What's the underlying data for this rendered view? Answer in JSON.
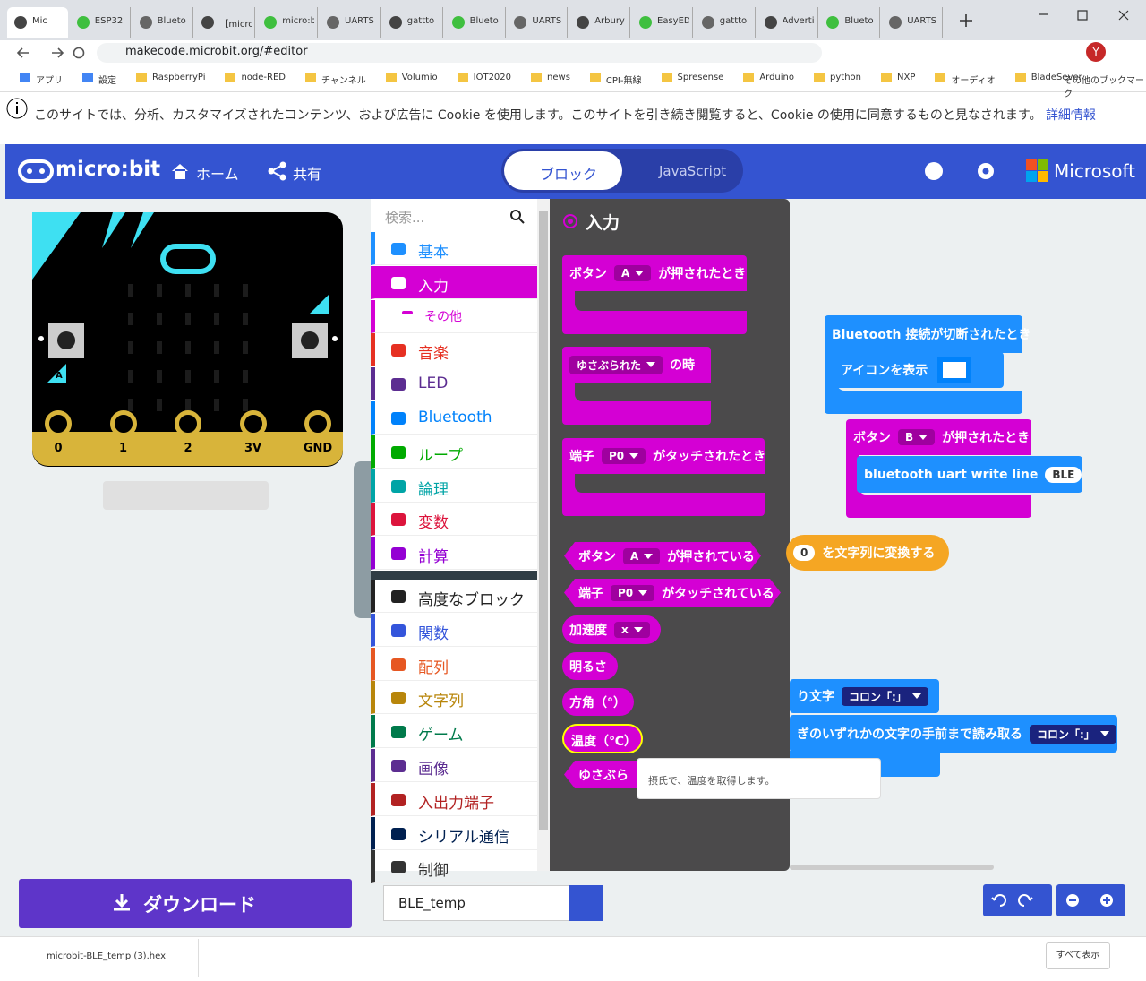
{
  "browser": {
    "tabs": [
      "Mic",
      "ESP32",
      "Blueto",
      "【micro",
      "micro:b",
      "UARTS",
      "gattto",
      "Blueto",
      "UARTS",
      "Arbury",
      "EasyED",
      "gattto",
      "Advertis",
      "Blueto",
      "UARTS"
    ],
    "address": "makecode.microbit.org/#editor",
    "profile": "Y",
    "bookmarks": [
      "アプリ",
      "設定",
      "RaspberryPi",
      "node-RED",
      "チャンネル",
      "Volumio",
      "IOT2020",
      "news",
      "CPI-無線",
      "Spresense",
      "Arduino",
      "python",
      "NXP",
      "オーディオ",
      "BladeSever"
    ],
    "other_bookmarks": "その他のブックマーク"
  },
  "cookie_banner": {
    "text": "このサイトでは、分析、カスタマイズされたコンテンツ、および広告に Cookie を使用します。このサイトを引き続き閲覧すると、Cookie の使用に同意するものと見なされます。",
    "link": "詳細情報"
  },
  "header": {
    "logo": "micro:bit",
    "home": "ホーム",
    "share": "共有",
    "blocks_tab": "ブロック",
    "javascript_tab": "JavaScript",
    "brand": "Microsoft"
  },
  "simulator": {
    "pins": [
      "0",
      "1",
      "2",
      "3V",
      "GND"
    ],
    "button_a": "A",
    "button_b": "B"
  },
  "toolbox": {
    "search_placeholder": "検索...",
    "categories": [
      "基本",
      "入力",
      "その他",
      "音楽",
      "LED",
      "Bluetooth",
      "ループ",
      "論理",
      "変数",
      "計算",
      "高度なブロック",
      "関数",
      "配列",
      "文字列",
      "ゲーム",
      "画像",
      "入出力端子",
      "シリアル通信",
      "制御"
    ]
  },
  "flyout": {
    "title": "入力",
    "blocks": [
      [
        "ボタン",
        "A",
        "が押されたとき"
      ],
      [
        "ゆさぶられた",
        "の時"
      ],
      [
        "端子",
        "P0",
        "がタッチされたとき"
      ],
      [
        "ボタン",
        "A",
        "が押されている"
      ],
      [
        "端子",
        "P0",
        "がタッチされている"
      ],
      [
        "加速度",
        "x"
      ],
      [
        "明るさ"
      ],
      [
        "方角（°）"
      ],
      [
        "温度（℃）"
      ],
      [
        "ゆさぶら"
      ]
    ]
  },
  "tooltip": "摂氏で、温度を取得します。",
  "workspace": {
    "blocks": [
      [
        "Bluetooth 接続が切断されたとき"
      ],
      [
        "アイコンを表示"
      ],
      [
        "ボタン",
        "B",
        "が押されたとき"
      ],
      [
        "bluetooth uart write line",
        "BLE"
      ],
      [
        "0",
        "を文字列に変換する"
      ],
      [
        "り文字",
        "コロン「:」"
      ],
      [
        "ぎのいずれかの文字の手前まで読み取る",
        "コロン「:」"
      ]
    ]
  },
  "footer": {
    "download": "ダウンロード",
    "project_name": "BLE_temp"
  },
  "download_bar": {
    "file": "microbit-BLE_temp (3).hex",
    "show_all": "すべて表示"
  }
}
